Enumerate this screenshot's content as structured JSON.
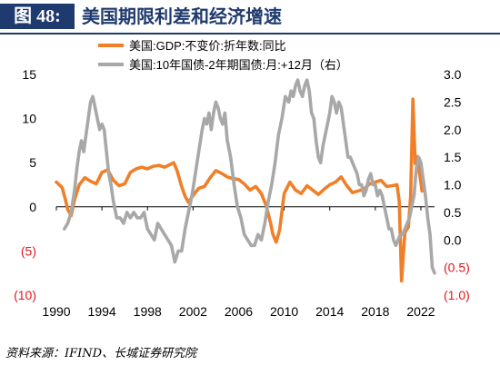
{
  "header": {
    "figure_tag": "图 48:",
    "title": "美国期限利差和经济增速"
  },
  "source": "资料来源：IFIND、长城证券研究院",
  "chart_data": {
    "type": "line",
    "legend_position": "top-center",
    "grid": false,
    "x_ticks": [
      "1990",
      "1994",
      "1998",
      "2002",
      "2006",
      "2010",
      "2014",
      "2018",
      "2022"
    ],
    "xlim": [
      1990,
      2023.2
    ],
    "y_left": {
      "ylim": [
        -10,
        15
      ],
      "ticks": [
        15,
        10,
        5,
        0,
        -5,
        -10
      ],
      "tick_labels": [
        "15",
        "10",
        "5",
        "0",
        "(5)",
        "(10)"
      ],
      "negative_color": "#e8141b"
    },
    "y_right": {
      "ylim": [
        -1.0,
        3.0
      ],
      "ticks": [
        3.0,
        2.5,
        2.0,
        1.5,
        1.0,
        0.5,
        0.0,
        -0.5,
        -1.0
      ],
      "tick_labels": [
        "3.0",
        "2.5",
        "2.0",
        "1.5",
        "1.0",
        "0.5",
        "0.0",
        "(0.5)",
        "(1.0)"
      ],
      "negative_color": "#e8141b"
    },
    "series": [
      {
        "name": "美国:GDP:不变价:折年数:同比",
        "axis": "left",
        "color": "#f07f2a",
        "points": [
          [
            1990.0,
            2.8
          ],
          [
            1990.5,
            2.2
          ],
          [
            1990.8,
            0.8
          ],
          [
            1991.0,
            -0.3
          ],
          [
            1991.3,
            -1.0
          ],
          [
            1991.6,
            0.8
          ],
          [
            1992.0,
            2.5
          ],
          [
            1992.5,
            3.3
          ],
          [
            1993.0,
            2.9
          ],
          [
            1993.5,
            2.6
          ],
          [
            1994.0,
            3.9
          ],
          [
            1994.5,
            4.2
          ],
          [
            1995.0,
            3.0
          ],
          [
            1995.5,
            2.4
          ],
          [
            1996.0,
            2.6
          ],
          [
            1996.5,
            3.9
          ],
          [
            1997.0,
            4.3
          ],
          [
            1997.5,
            4.5
          ],
          [
            1998.0,
            4.3
          ],
          [
            1998.5,
            4.6
          ],
          [
            1999.0,
            4.7
          ],
          [
            1999.5,
            4.5
          ],
          [
            2000.0,
            4.8
          ],
          [
            2000.3,
            5.0
          ],
          [
            2000.6,
            4.1
          ],
          [
            2001.0,
            2.3
          ],
          [
            2001.3,
            1.2
          ],
          [
            2001.6,
            0.5
          ],
          [
            2002.0,
            1.3
          ],
          [
            2002.5,
            2.1
          ],
          [
            2003.0,
            2.3
          ],
          [
            2003.5,
            3.3
          ],
          [
            2004.0,
            4.1
          ],
          [
            2004.5,
            3.8
          ],
          [
            2005.0,
            3.4
          ],
          [
            2005.5,
            3.2
          ],
          [
            2006.0,
            3.1
          ],
          [
            2006.5,
            2.6
          ],
          [
            2007.0,
            1.9
          ],
          [
            2007.5,
            2.3
          ],
          [
            2008.0,
            1.5
          ],
          [
            2008.4,
            0.2
          ],
          [
            2008.8,
            -1.8
          ],
          [
            2009.0,
            -3.1
          ],
          [
            2009.3,
            -4.0
          ],
          [
            2009.6,
            -2.6
          ],
          [
            2010.0,
            1.5
          ],
          [
            2010.5,
            2.8
          ],
          [
            2011.0,
            1.9
          ],
          [
            2011.5,
            1.5
          ],
          [
            2012.0,
            2.4
          ],
          [
            2012.5,
            1.9
          ],
          [
            2013.0,
            1.4
          ],
          [
            2013.5,
            2.0
          ],
          [
            2014.0,
            2.5
          ],
          [
            2014.5,
            2.8
          ],
          [
            2015.0,
            3.4
          ],
          [
            2015.5,
            2.4
          ],
          [
            2016.0,
            1.6
          ],
          [
            2016.5,
            1.8
          ],
          [
            2017.0,
            2.0
          ],
          [
            2017.5,
            2.6
          ],
          [
            2018.0,
            2.8
          ],
          [
            2018.5,
            3.0
          ],
          [
            2019.0,
            2.3
          ],
          [
            2019.5,
            2.4
          ],
          [
            2019.9,
            2.5
          ],
          [
            2020.1,
            0.6
          ],
          [
            2020.3,
            -8.4
          ],
          [
            2020.6,
            -2.9
          ],
          [
            2020.9,
            -2.3
          ],
          [
            2021.1,
            1.2
          ],
          [
            2021.3,
            12.2
          ],
          [
            2021.5,
            4.9
          ],
          [
            2021.7,
            5.7
          ],
          [
            2021.9,
            3.7
          ],
          [
            2022.1,
            1.8
          ],
          [
            2022.3,
            1.9
          ]
        ]
      },
      {
        "name": "美国:10年国债-2年期国债:月:+12月（右）",
        "axis": "right",
        "color": "#a8a8a8",
        "points": [
          [
            1990.7,
            0.2
          ],
          [
            1991.0,
            0.3
          ],
          [
            1991.3,
            0.5
          ],
          [
            1991.6,
            0.9
          ],
          [
            1991.8,
            1.3
          ],
          [
            1992.0,
            1.6
          ],
          [
            1992.2,
            1.8
          ],
          [
            1992.4,
            1.6
          ],
          [
            1992.6,
            1.9
          ],
          [
            1992.8,
            2.2
          ],
          [
            1993.0,
            2.5
          ],
          [
            1993.2,
            2.6
          ],
          [
            1993.4,
            2.4
          ],
          [
            1993.6,
            2.2
          ],
          [
            1993.8,
            2.0
          ],
          [
            1994.0,
            2.1
          ],
          [
            1994.2,
            2.0
          ],
          [
            1994.4,
            1.6
          ],
          [
            1994.6,
            1.2
          ],
          [
            1994.8,
            1.0
          ],
          [
            1995.0,
            0.7
          ],
          [
            1995.3,
            0.4
          ],
          [
            1995.6,
            0.4
          ],
          [
            1995.9,
            0.3
          ],
          [
            1996.2,
            0.5
          ],
          [
            1996.5,
            0.4
          ],
          [
            1996.8,
            0.5
          ],
          [
            1997.1,
            0.4
          ],
          [
            1997.4,
            0.4
          ],
          [
            1997.7,
            0.5
          ],
          [
            1998.0,
            0.2
          ],
          [
            1998.3,
            0.1
          ],
          [
            1998.6,
            0.0
          ],
          [
            1998.9,
            0.3
          ],
          [
            1999.2,
            0.2
          ],
          [
            1999.5,
            0.1
          ],
          [
            1999.8,
            0.0
          ],
          [
            2000.1,
            -0.1
          ],
          [
            2000.4,
            -0.4
          ],
          [
            2000.7,
            -0.2
          ],
          [
            2001.0,
            -0.2
          ],
          [
            2001.3,
            0.2
          ],
          [
            2001.6,
            0.5
          ],
          [
            2001.9,
            0.8
          ],
          [
            2002.2,
            1.2
          ],
          [
            2002.5,
            1.6
          ],
          [
            2002.8,
            2.0
          ],
          [
            2003.0,
            2.2
          ],
          [
            2003.2,
            2.1
          ],
          [
            2003.4,
            2.3
          ],
          [
            2003.6,
            2.0
          ],
          [
            2003.8,
            2.3
          ],
          [
            2004.0,
            2.5
          ],
          [
            2004.2,
            2.4
          ],
          [
            2004.4,
            2.2
          ],
          [
            2004.6,
            2.1
          ],
          [
            2004.8,
            2.3
          ],
          [
            2005.0,
            1.8
          ],
          [
            2005.3,
            1.5
          ],
          [
            2005.6,
            1.0
          ],
          [
            2005.9,
            0.6
          ],
          [
            2006.2,
            0.4
          ],
          [
            2006.5,
            0.1
          ],
          [
            2006.8,
            0.0
          ],
          [
            2007.1,
            -0.1
          ],
          [
            2007.4,
            -0.1
          ],
          [
            2007.7,
            0.1
          ],
          [
            2008.0,
            0.0
          ],
          [
            2008.3,
            0.3
          ],
          [
            2008.6,
            0.7
          ],
          [
            2008.9,
            1.0
          ],
          [
            2009.2,
            1.4
          ],
          [
            2009.5,
            1.9
          ],
          [
            2009.8,
            2.2
          ],
          [
            2010.1,
            2.6
          ],
          [
            2010.4,
            2.5
          ],
          [
            2010.6,
            2.7
          ],
          [
            2010.8,
            2.6
          ],
          [
            2011.0,
            2.8
          ],
          [
            2011.2,
            2.9
          ],
          [
            2011.4,
            2.7
          ],
          [
            2011.6,
            2.6
          ],
          [
            2011.8,
            2.8
          ],
          [
            2012.0,
            2.9
          ],
          [
            2012.2,
            2.7
          ],
          [
            2012.4,
            2.3
          ],
          [
            2012.6,
            2.2
          ],
          [
            2012.8,
            1.8
          ],
          [
            2013.0,
            1.5
          ],
          [
            2013.2,
            1.4
          ],
          [
            2013.4,
            1.7
          ],
          [
            2013.6,
            1.9
          ],
          [
            2013.8,
            2.1
          ],
          [
            2014.0,
            2.3
          ],
          [
            2014.2,
            2.6
          ],
          [
            2014.4,
            2.5
          ],
          [
            2014.6,
            2.3
          ],
          [
            2014.8,
            2.5
          ],
          [
            2015.0,
            2.4
          ],
          [
            2015.2,
            2.1
          ],
          [
            2015.4,
            1.8
          ],
          [
            2015.6,
            1.5
          ],
          [
            2015.8,
            1.5
          ],
          [
            2016.0,
            1.4
          ],
          [
            2016.2,
            1.3
          ],
          [
            2016.4,
            1.2
          ],
          [
            2016.6,
            1.0
          ],
          [
            2016.8,
            1.0
          ],
          [
            2017.0,
            0.8
          ],
          [
            2017.2,
            0.9
          ],
          [
            2017.4,
            1.1
          ],
          [
            2017.6,
            1.2
          ],
          [
            2017.8,
            1.0
          ],
          [
            2018.0,
            1.0
          ],
          [
            2018.2,
            0.8
          ],
          [
            2018.4,
            0.9
          ],
          [
            2018.6,
            0.8
          ],
          [
            2018.8,
            0.6
          ],
          [
            2019.0,
            0.4
          ],
          [
            2019.2,
            0.2
          ],
          [
            2019.4,
            0.2
          ],
          [
            2019.6,
            0.0
          ],
          [
            2019.8,
            -0.1
          ],
          [
            2020.0,
            0.0
          ],
          [
            2020.2,
            0.1
          ],
          [
            2020.4,
            0.1
          ],
          [
            2020.6,
            0.2
          ],
          [
            2020.8,
            0.3
          ],
          [
            2021.0,
            0.4
          ],
          [
            2021.2,
            0.6
          ],
          [
            2021.4,
            0.8
          ],
          [
            2021.6,
            1.3
          ],
          [
            2021.8,
            1.5
          ],
          [
            2022.0,
            1.4
          ],
          [
            2022.2,
            1.1
          ],
          [
            2022.4,
            0.8
          ],
          [
            2022.6,
            0.4
          ],
          [
            2022.8,
            0.1
          ],
          [
            2023.0,
            -0.5
          ],
          [
            2023.2,
            -0.6
          ]
        ]
      }
    ]
  }
}
